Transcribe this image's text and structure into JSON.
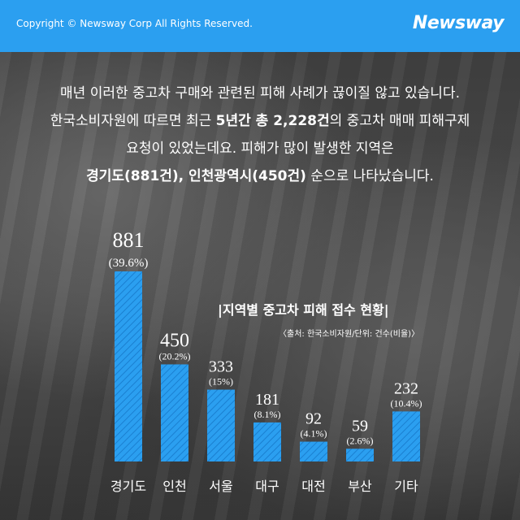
{
  "header": {
    "copyright": "Copyright © Newsway Corp All Rights Reserved.",
    "logo": "Newsway"
  },
  "intro": {
    "line1": "매년 이러한 중고차 구매와 관련된 피해 사례가 끊이질 않고 있습니다.",
    "line2_a": "한국소비자원에 따르면 최근 ",
    "line2_b": "5년간 총 2,228건",
    "line2_c": "의 중고차 매매 피해구제",
    "line3": "요청이 있었는데요. 피해가 많이 발생한 지역은",
    "line4_a": "경기도(881건), 인천광역시(450건)",
    "line4_b": " 순으로 나타났습니다."
  },
  "chart_data": {
    "type": "bar",
    "title": "|지역별 중고차 피해 접수 현황|",
    "source": "〈출처: 한국소비자원/단위: 건수(비율)〉",
    "categories": [
      "경기도",
      "인천",
      "서울",
      "대구",
      "대전",
      "부산",
      "기타"
    ],
    "values": [
      881,
      450,
      333,
      181,
      92,
      59,
      232
    ],
    "value_labels": [
      "881",
      "450",
      "333",
      "181",
      "92",
      "59",
      "232"
    ],
    "percent_labels": [
      "(39.6%)",
      "(20.2%)",
      "(15%)",
      "(8.1%)",
      "(4.1%)",
      "(2.6%)",
      "(10.4%)"
    ],
    "ylim": [
      0,
      881
    ],
    "bar_color": "#2b9ff0",
    "grid": false,
    "legend": "none"
  },
  "colors": {
    "accent": "#2b9ff0",
    "text": "#ffffff"
  }
}
